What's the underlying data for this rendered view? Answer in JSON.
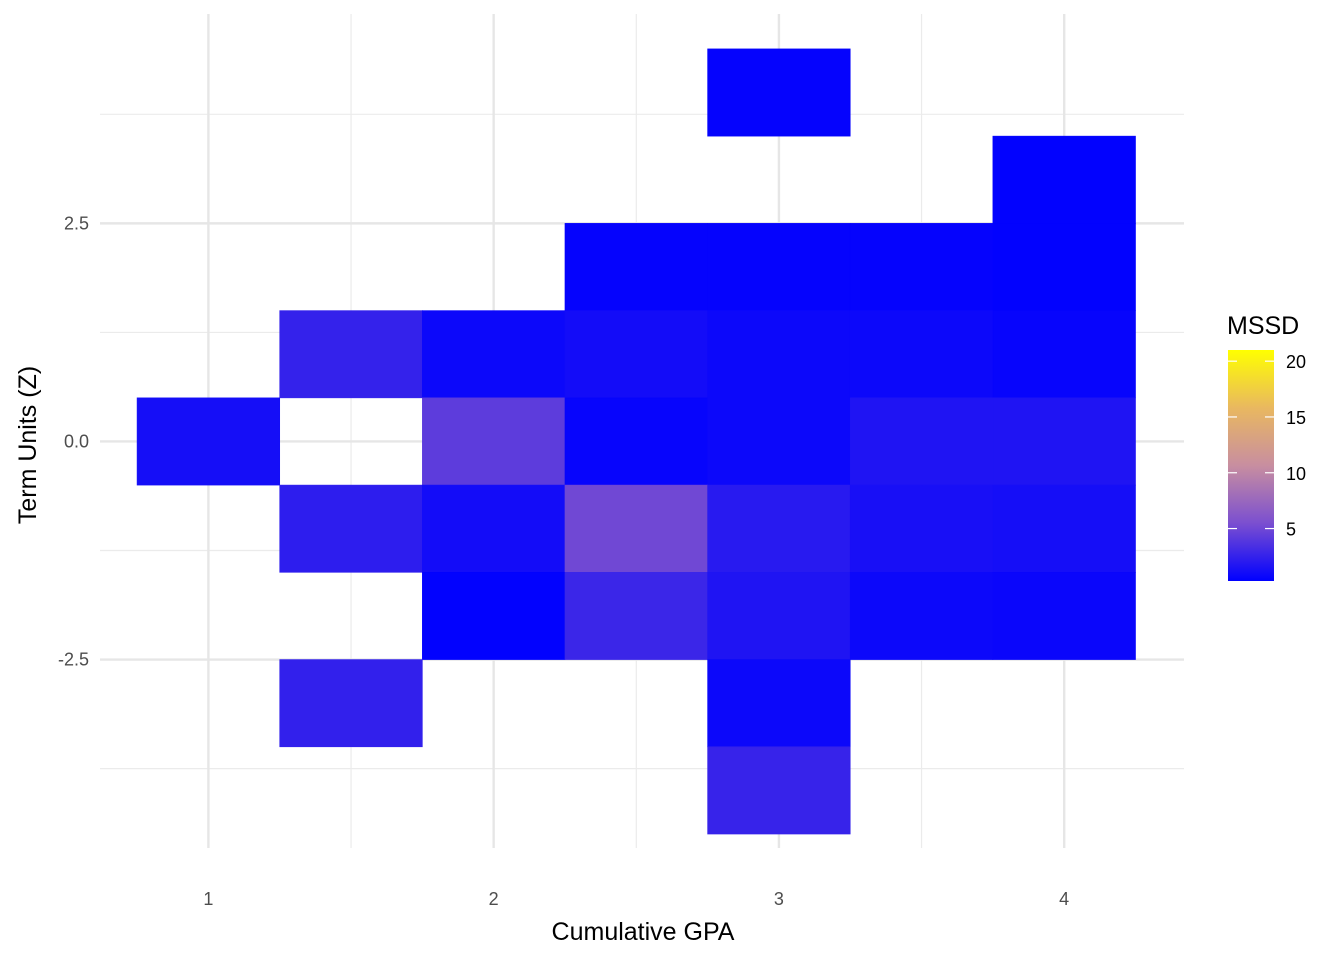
{
  "chart_data": {
    "type": "heatmap",
    "title": "",
    "xlabel": "Cumulative GPA",
    "ylabel": "Term Units (Z)",
    "x_ticks": [
      1,
      2,
      3,
      4
    ],
    "x_tick_labels": [
      "1",
      "2",
      "3",
      "4"
    ],
    "y_ticks": [
      -2.5,
      0,
      2.5
    ],
    "y_tick_labels": [
      "-2.5",
      "0.0",
      "2.5"
    ],
    "xlim": [
      0.62,
      4.42
    ],
    "ylim": [
      -4.66,
      4.9
    ],
    "bin_width_x": 0.5,
    "bin_height_y": 1.0,
    "grid": true,
    "legend": {
      "title": "MSSD",
      "position": "right",
      "ticks": [
        5,
        10,
        15,
        20
      ],
      "tick_labels": [
        "5",
        "10",
        "15",
        "20"
      ],
      "range": [
        0.3,
        21
      ],
      "gradient": [
        "#0000FF",
        "#7B4FD0",
        "#C88EA0",
        "#E9B860",
        "#FFFF00"
      ]
    },
    "cells": [
      {
        "x": 3.0,
        "y": 4.0,
        "value": 0.5
      },
      {
        "x": 4.0,
        "y": 3.0,
        "value": 0.4
      },
      {
        "x": 2.5,
        "y": 2.0,
        "value": 0.5
      },
      {
        "x": 3.0,
        "y": 2.0,
        "value": 0.5
      },
      {
        "x": 3.5,
        "y": 2.0,
        "value": 0.5
      },
      {
        "x": 4.0,
        "y": 2.0,
        "value": 0.4
      },
      {
        "x": 1.5,
        "y": 1.0,
        "value": 2.5
      },
      {
        "x": 2.0,
        "y": 1.0,
        "value": 0.8
      },
      {
        "x": 2.5,
        "y": 1.0,
        "value": 1.1
      },
      {
        "x": 3.0,
        "y": 1.0,
        "value": 0.8
      },
      {
        "x": 3.5,
        "y": 1.0,
        "value": 0.8
      },
      {
        "x": 4.0,
        "y": 1.0,
        "value": 0.6
      },
      {
        "x": 1.0,
        "y": 0.0,
        "value": 1.2
      },
      {
        "x": 2.0,
        "y": 0.0,
        "value": 4.2
      },
      {
        "x": 2.5,
        "y": 0.0,
        "value": 0.6
      },
      {
        "x": 3.0,
        "y": 0.0,
        "value": 0.8
      },
      {
        "x": 3.5,
        "y": 0.0,
        "value": 1.6
      },
      {
        "x": 4.0,
        "y": 0.0,
        "value": 1.6
      },
      {
        "x": 1.5,
        "y": -1.0,
        "value": 2.2
      },
      {
        "x": 2.0,
        "y": -1.0,
        "value": 1.1
      },
      {
        "x": 2.5,
        "y": -1.0,
        "value": 5.0
      },
      {
        "x": 3.0,
        "y": -1.0,
        "value": 2.0
      },
      {
        "x": 3.5,
        "y": -1.0,
        "value": 1.3
      },
      {
        "x": 4.0,
        "y": -1.0,
        "value": 1.2
      },
      {
        "x": 2.0,
        "y": -2.0,
        "value": 0.4
      },
      {
        "x": 2.5,
        "y": -2.0,
        "value": 2.8
      },
      {
        "x": 3.0,
        "y": -2.0,
        "value": 1.6
      },
      {
        "x": 3.5,
        "y": -2.0,
        "value": 0.8
      },
      {
        "x": 4.0,
        "y": -2.0,
        "value": 0.7
      },
      {
        "x": 1.5,
        "y": -3.0,
        "value": 2.4
      },
      {
        "x": 3.0,
        "y": -3.0,
        "value": 0.8
      },
      {
        "x": 3.0,
        "y": -4.0,
        "value": 2.6
      }
    ]
  }
}
